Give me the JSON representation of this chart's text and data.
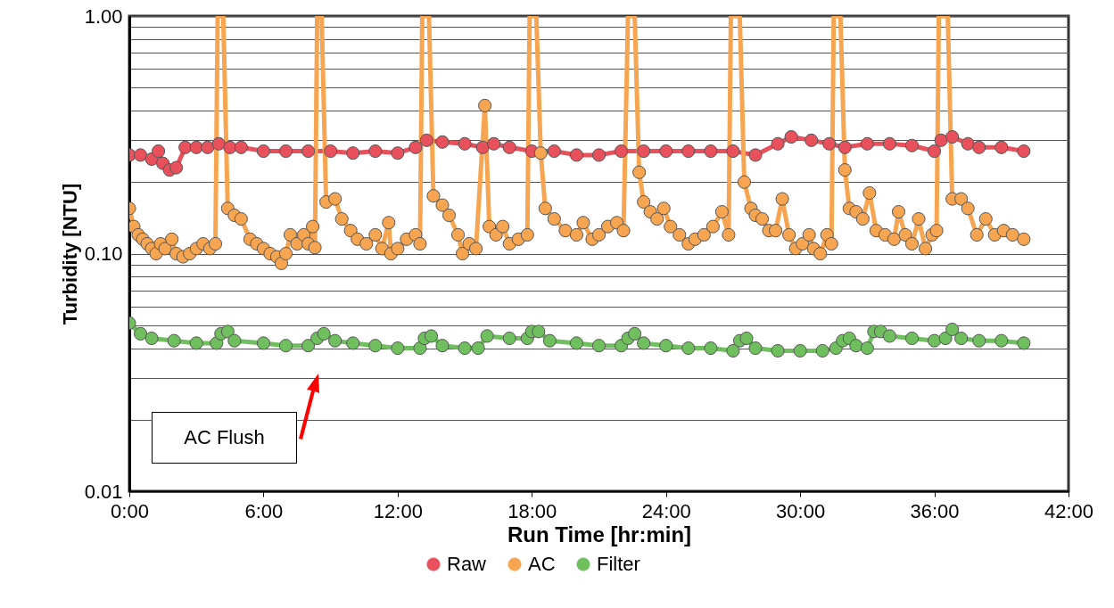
{
  "chart_data": {
    "type": "line",
    "xlabel": "Run Time [hr:min]",
    "ylabel": "Turbidity [NTU]",
    "xlim": [
      0,
      42
    ],
    "xticks": [
      {
        "value": 0,
        "label": "0:00"
      },
      {
        "value": 6,
        "label": "6:00"
      },
      {
        "value": 12,
        "label": "12:00"
      },
      {
        "value": 18,
        "label": "18:00"
      },
      {
        "value": 24,
        "label": "24:00"
      },
      {
        "value": 30,
        "label": "30:00"
      },
      {
        "value": 36,
        "label": "36:00"
      },
      {
        "value": 42,
        "label": "42:00"
      }
    ],
    "ylim": [
      0.01,
      1
    ],
    "log": "y",
    "yticks": [
      0.01,
      {
        "value": 0.02,
        "label": null
      },
      {
        "value": 0.03,
        "label": null
      },
      {
        "value": 0.04,
        "label": null
      },
      {
        "value": 0.05,
        "label": null
      },
      {
        "value": 0.06,
        "label": null
      },
      {
        "value": 0.07,
        "label": null
      },
      {
        "value": 0.08,
        "label": null
      },
      {
        "value": 0.09,
        "label": null
      },
      {
        "value": 0.1,
        "label": "0.10"
      },
      {
        "value": 0.2,
        "label": null
      },
      {
        "value": 0.3,
        "label": null
      },
      {
        "value": 0.4,
        "label": null
      },
      {
        "value": 0.5,
        "label": null
      },
      {
        "value": 0.6,
        "label": null
      },
      {
        "value": 0.7,
        "label": null
      },
      {
        "value": 0.8,
        "label": null
      },
      {
        "value": 0.9,
        "label": null
      },
      {
        "value": 1,
        "label": "1.00"
      }
    ],
    "grid": "y",
    "legend": "bottom",
    "marker": "circle",
    "line_style": "solid",
    "annotations": [
      "AC Flush"
    ],
    "series": [
      {
        "name": "Raw",
        "color": "#e8505b",
        "x": [
          0,
          0.5,
          1.0,
          1.3,
          1.5,
          1.8,
          2.1,
          2.5,
          3.0,
          3.5,
          4.0,
          4.5,
          5,
          6,
          7,
          8,
          9,
          10,
          11,
          12,
          12.8,
          13.3,
          14,
          15,
          15.8,
          16.3,
          17,
          18,
          19,
          20,
          21,
          22,
          23,
          24,
          25,
          26,
          27,
          28,
          29,
          29.6,
          30.5,
          31.3,
          32,
          33,
          34,
          35,
          36,
          36.3,
          36.8,
          37.5,
          38,
          39,
          40
        ],
        "values": [
          0.26,
          0.26,
          0.25,
          0.27,
          0.24,
          0.225,
          0.23,
          0.28,
          0.28,
          0.28,
          0.29,
          0.28,
          0.28,
          0.27,
          0.27,
          0.27,
          0.27,
          0.265,
          0.27,
          0.265,
          0.28,
          0.3,
          0.295,
          0.29,
          0.28,
          0.29,
          0.28,
          0.27,
          0.27,
          0.26,
          0.26,
          0.27,
          0.27,
          0.27,
          0.27,
          0.27,
          0.27,
          0.26,
          0.29,
          0.31,
          0.3,
          0.29,
          0.28,
          0.29,
          0.29,
          0.285,
          0.27,
          0.3,
          0.31,
          0.29,
          0.28,
          0.28,
          0.27
        ]
      },
      {
        "name": "AC",
        "color": "#f7a550",
        "x": [
          0,
          0.2,
          0.4,
          0.6,
          0.8,
          1.0,
          1.2,
          1.4,
          1.6,
          1.9,
          2.1,
          2.4,
          2.7,
          3.0,
          3.3,
          3.6,
          3.85,
          3.95,
          4.2,
          4.4,
          4.7,
          5.0,
          5.4,
          5.7,
          6.0,
          6.3,
          6.6,
          6.8,
          7.0,
          7.2,
          7.5,
          7.8,
          8.0,
          8.2,
          8.3,
          8.4,
          8.6,
          8.8,
          9.2,
          9.5,
          9.9,
          10.2,
          10.6,
          11.0,
          11.3,
          11.6,
          11.7,
          12.0,
          12.4,
          12.8,
          13.0,
          13.1,
          13.4,
          13.6,
          14.0,
          14.3,
          14.7,
          14.9,
          15.2,
          15.5,
          15.9,
          16.1,
          16.4,
          16.7,
          17.0,
          17.4,
          17.8,
          17.9,
          18.2,
          18.4,
          18.6,
          19.0,
          19.5,
          20.0,
          20.3,
          20.7,
          21.0,
          21.4,
          21.8,
          22.1,
          22.3,
          22.6,
          22.8,
          23.0,
          23.3,
          23.6,
          23.9,
          24.2,
          24.6,
          25.0,
          25.3,
          25.7,
          26.1,
          26.5,
          26.8,
          26.9,
          27.3,
          27.5,
          27.8,
          28.0,
          28.3,
          28.6,
          28.9,
          29.2,
          29.5,
          29.8,
          30.1,
          30.4,
          30.6,
          30.9,
          31.2,
          31.4,
          31.5,
          31.8,
          32.0,
          32.2,
          32.5,
          32.8,
          33.1,
          33.4,
          33.8,
          34.2,
          34.4,
          34.7,
          35.0,
          35.3,
          35.6,
          35.9,
          36.1,
          36.2,
          36.6,
          36.8,
          37.2,
          37.5,
          37.9,
          38.3,
          38.7,
          39.1,
          39.5,
          40.0
        ],
        "values": [
          0.155,
          0.13,
          0.12,
          0.115,
          0.11,
          0.105,
          0.1,
          0.11,
          0.105,
          0.115,
          0.1,
          0.097,
          0.1,
          0.105,
          0.11,
          0.105,
          0.11,
          1,
          1,
          0.155,
          0.145,
          0.14,
          0.115,
          0.11,
          0.105,
          0.1,
          0.097,
          0.091,
          0.1,
          0.12,
          0.11,
          0.12,
          0.11,
          0.13,
          0.106,
          1,
          1,
          0.165,
          0.17,
          0.14,
          0.125,
          0.115,
          0.11,
          0.12,
          0.105,
          0.135,
          0.1,
          0.105,
          0.115,
          0.12,
          0.11,
          1,
          1,
          0.175,
          0.16,
          0.145,
          0.12,
          0.1,
          0.11,
          0.105,
          0.42,
          0.13,
          0.12,
          0.13,
          0.11,
          0.115,
          0.12,
          1,
          1,
          0.265,
          0.155,
          0.14,
          0.125,
          0.12,
          0.135,
          0.115,
          0.12,
          0.13,
          0.135,
          0.125,
          1,
          1,
          0.22,
          0.165,
          0.15,
          0.14,
          0.155,
          0.13,
          0.12,
          0.11,
          0.115,
          0.12,
          0.13,
          0.15,
          0.12,
          1,
          1,
          0.2,
          0.155,
          0.145,
          0.14,
          0.125,
          0.125,
          0.17,
          0.12,
          0.105,
          0.11,
          0.12,
          0.105,
          0.1,
          0.12,
          0.11,
          1,
          1,
          0.225,
          0.155,
          0.15,
          0.14,
          0.18,
          0.125,
          0.12,
          0.115,
          0.15,
          0.12,
          0.11,
          0.14,
          0.105,
          0.12,
          0.125,
          1,
          1,
          0.17,
          0.17,
          0.155,
          0.12,
          0.14,
          0.12,
          0.125,
          0.12,
          0.115
        ]
      },
      {
        "name": "Filter",
        "color": "#6fbf5f",
        "x": [
          0,
          0.5,
          1,
          2,
          3,
          3.9,
          4.1,
          4.4,
          4.7,
          6,
          7,
          8,
          8.4,
          8.7,
          9.2,
          10,
          11,
          12,
          13,
          13.2,
          13.5,
          14,
          15,
          15.6,
          16,
          17,
          17.8,
          18.0,
          18.3,
          18.8,
          20,
          21,
          22,
          22.3,
          22.6,
          23,
          24,
          25,
          26,
          27,
          27.3,
          27.6,
          28,
          29,
          30,
          31,
          31.6,
          31.9,
          32.2,
          32.5,
          33,
          33.3,
          33.6,
          34,
          35,
          36,
          36.5,
          36.8,
          37.2,
          38,
          39,
          40
        ],
        "values": [
          0.051,
          0.046,
          0.044,
          0.043,
          0.042,
          0.042,
          0.046,
          0.047,
          0.043,
          0.042,
          0.041,
          0.041,
          0.044,
          0.046,
          0.043,
          0.042,
          0.041,
          0.04,
          0.04,
          0.044,
          0.045,
          0.041,
          0.04,
          0.04,
          0.045,
          0.044,
          0.044,
          0.047,
          0.047,
          0.043,
          0.042,
          0.041,
          0.041,
          0.044,
          0.046,
          0.042,
          0.041,
          0.04,
          0.04,
          0.039,
          0.043,
          0.044,
          0.04,
          0.039,
          0.039,
          0.039,
          0.04,
          0.043,
          0.044,
          0.041,
          0.04,
          0.047,
          0.047,
          0.045,
          0.044,
          0.043,
          0.044,
          0.048,
          0.044,
          0.043,
          0.043,
          0.042
        ]
      }
    ]
  }
}
